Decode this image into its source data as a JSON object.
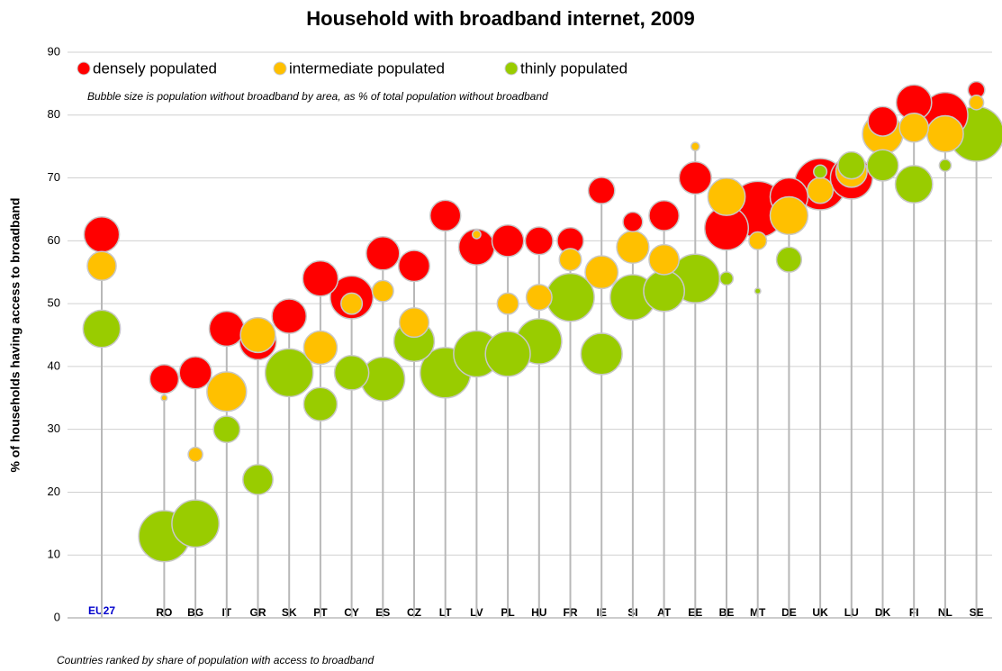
{
  "chart_data": {
    "type": "bubble",
    "title": "Household with broadband internet, 2009",
    "y_label": "% of households having access to broadband",
    "annotation": "Bubble size is population without broadband by area, as % of total population without broadband",
    "footnote": "Countries ranked by share of population with access to broadband",
    "legend": "top-left",
    "grid": true,
    "ylim": [
      0,
      90
    ],
    "yticks": [
      0,
      10,
      20,
      30,
      40,
      50,
      60,
      70,
      80,
      90
    ],
    "categories": [
      "EU27",
      null,
      "RO",
      "BG",
      "IT",
      "GR",
      "SK",
      "PT",
      "CY",
      "ES",
      "CZ",
      "LT",
      "LV",
      "PL",
      "HU",
      "FR",
      "IE",
      "SI",
      "AT",
      "EE",
      "BE",
      "MT",
      "DE",
      "UK",
      "LU",
      "DK",
      "FI",
      "NL",
      "SE"
    ],
    "highlight_category_color": "#0000cc",
    "series": [
      {
        "name": "densely populated",
        "color": "#ff0000",
        "values": [
          61,
          null,
          38,
          39,
          46,
          44,
          48,
          54,
          51,
          58,
          56,
          64,
          59,
          60,
          60,
          60,
          68,
          63,
          64,
          70,
          62,
          65,
          67,
          69,
          70,
          79,
          82,
          80,
          84
        ],
        "sizes": [
          36,
          null,
          24,
          30,
          35,
          39,
          34,
          36,
          53,
          32,
          28,
          27,
          37,
          29,
          22,
          20,
          20,
          11,
          26,
          30,
          55,
          90,
          41,
          76,
          51,
          25,
          36,
          59,
          8
        ]
      },
      {
        "name": "intermediate populated",
        "color": "#ffc000",
        "values": [
          56,
          null,
          35,
          26,
          36,
          45,
          null,
          43,
          50,
          52,
          47,
          null,
          61,
          50,
          51,
          57,
          55,
          59,
          57,
          75,
          67,
          60,
          64,
          68,
          71,
          77,
          78,
          77,
          82
        ],
        "sizes": [
          24,
          null,
          1,
          6,
          45,
          35,
          null,
          32,
          13,
          13,
          25,
          null,
          2,
          13,
          19,
          14,
          31,
          30,
          26,
          2,
          40,
          9,
          41,
          19,
          28,
          47,
          24,
          38,
          6
        ]
      },
      {
        "name": "thinly populated",
        "color": "#99cc00",
        "values": [
          46,
          null,
          13,
          15,
          30,
          22,
          39,
          34,
          39,
          38,
          44,
          39,
          42,
          42,
          44,
          51,
          42,
          51,
          52,
          54,
          54,
          52,
          57,
          71,
          72,
          72,
          69,
          72,
          77
        ],
        "sizes": [
          40,
          null,
          75,
          64,
          20,
          26,
          66,
          32,
          34,
          55,
          47,
          73,
          61,
          58,
          59,
          66,
          49,
          59,
          48,
          68,
          5,
          1,
          18,
          5,
          21,
          28,
          40,
          4,
          86
        ]
      }
    ]
  }
}
